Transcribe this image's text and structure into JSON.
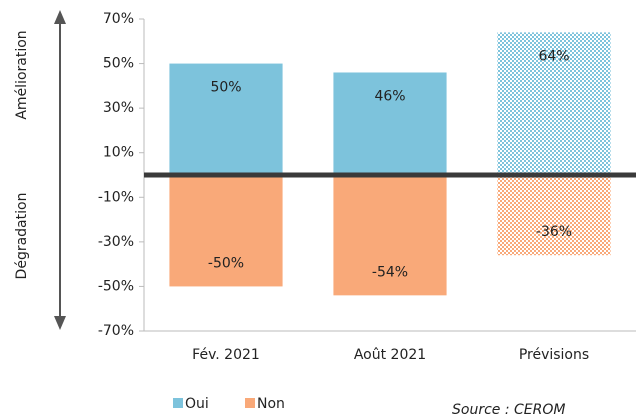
{
  "chart_data": {
    "type": "bar",
    "stacked": true,
    "categories": [
      "Fév. 2021",
      "Août 2021",
      "Prévisions"
    ],
    "patterned": [
      false,
      false,
      true
    ],
    "series": [
      {
        "name": "Oui",
        "color": "#7dc3dc",
        "values": [
          50,
          46,
          64
        ],
        "value_labels": [
          "50%",
          "46%",
          "64%"
        ]
      },
      {
        "name": "Non",
        "color": "#f9a979",
        "values": [
          -50,
          -54,
          -36
        ],
        "value_labels": [
          "-50%",
          "-54%",
          "-36%"
        ]
      }
    ],
    "ylim": [
      -70,
      70
    ],
    "yticks": [
      {
        "value": 70,
        "label": "70%"
      },
      {
        "value": 50,
        "label": "50%"
      },
      {
        "value": 30,
        "label": "30%"
      },
      {
        "value": 10,
        "label": "10%"
      },
      {
        "value": -10,
        "label": "-10%"
      },
      {
        "value": -30,
        "label": "-30%"
      },
      {
        "value": -50,
        "label": "-50%"
      },
      {
        "value": -70,
        "label": "-70%"
      }
    ],
    "side_labels": [
      "Amélioration",
      "Dégradation"
    ],
    "source": "Source : CEROM",
    "legend": "bottom-left"
  }
}
